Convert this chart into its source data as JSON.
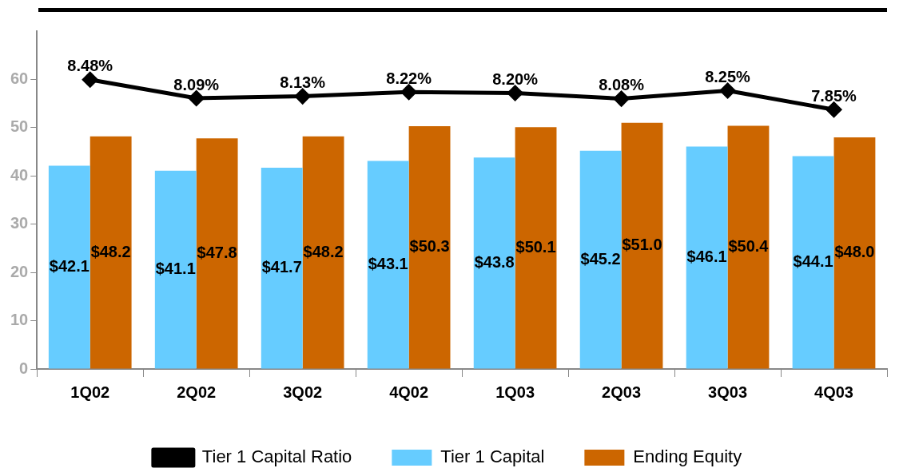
{
  "chart_data": {
    "type": "bar",
    "categories": [
      "1Q02",
      "2Q02",
      "3Q02",
      "4Q02",
      "1Q03",
      "2Q03",
      "3Q03",
      "4Q03"
    ],
    "series": [
      {
        "name": "Tier 1 Capital",
        "color": "#66ccff",
        "values": [
          42.1,
          41.1,
          41.7,
          43.1,
          43.8,
          45.2,
          46.1,
          44.1
        ],
        "value_labels": [
          "$42.1",
          "$41.1",
          "$41.7",
          "$43.1",
          "$43.8",
          "$45.2",
          "$46.1",
          "$44.1"
        ]
      },
      {
        "name": "Ending Equity",
        "color": "#cc6600",
        "values": [
          48.2,
          47.8,
          48.2,
          50.3,
          50.1,
          51.0,
          50.4,
          48.0
        ],
        "value_labels": [
          "$48.2",
          "$47.8",
          "$48.2",
          "$50.3",
          "$50.1",
          "$51.0",
          "$50.4",
          "$48.0"
        ]
      },
      {
        "name": "Tier 1 Capital Ratio",
        "type": "line",
        "axis": "y2",
        "color": "#000000",
        "marker": "diamond",
        "values": [
          8.48,
          8.09,
          8.13,
          8.22,
          8.2,
          8.08,
          8.25,
          7.85
        ],
        "value_labels": [
          "8.48%",
          "8.09%",
          "8.13%",
          "8.22%",
          "8.20%",
          "8.08%",
          "8.25%",
          "7.85%"
        ]
      }
    ],
    "ylim": [
      0,
      70
    ],
    "yticks": [
      0,
      10,
      20,
      30,
      40,
      50,
      60
    ],
    "y2lim": [
      2.4,
      9.5
    ],
    "legend": "bottom"
  }
}
